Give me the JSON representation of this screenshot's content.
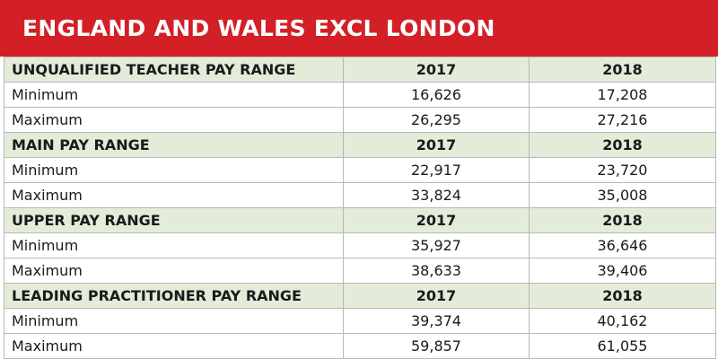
{
  "title": "ENGLAND AND WALES EXCL LONDON",
  "sections": [
    {
      "heading": "UNQUALIFIED TEACHER PAY RANGE",
      "year1": "2017",
      "year2": "2018",
      "rows": [
        {
          "label": "Minimum",
          "v2017": "16,626",
          "v2018": "17,208"
        },
        {
          "label": "Maximum",
          "v2017": "26,295",
          "v2018": "27,216"
        }
      ]
    },
    {
      "heading": "MAIN PAY RANGE",
      "year1": "2017",
      "year2": "2018",
      "rows": [
        {
          "label": "Minimum",
          "v2017": "22,917",
          "v2018": "23,720"
        },
        {
          "label": "Maximum",
          "v2017": "33,824",
          "v2018": "35,008"
        }
      ]
    },
    {
      "heading": "UPPER PAY RANGE",
      "year1": "2017",
      "year2": "2018",
      "rows": [
        {
          "label": "Minimum",
          "v2017": "35,927",
          "v2018": "36,646"
        },
        {
          "label": "Maximum",
          "v2017": "38,633",
          "v2018": "39,406"
        }
      ]
    },
    {
      "heading": "LEADING PRACTITIONER PAY RANGE",
      "year1": "2017",
      "year2": "2018",
      "rows": [
        {
          "label": "Minimum",
          "v2017": "39,374",
          "v2018": "40,162"
        },
        {
          "label": "Maximum",
          "v2017": "59,857",
          "v2018": "61,055"
        }
      ]
    }
  ],
  "colors": {
    "title_bar": "#d31f26",
    "section_row": "#e3ecd9",
    "grid_line": "#b8b8b8"
  }
}
